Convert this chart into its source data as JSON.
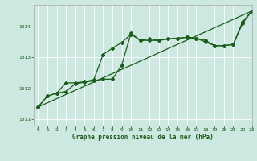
{
  "title": "Graphe pression niveau de la mer (hPa)",
  "xlim": [
    -0.5,
    23
  ],
  "ylim": [
    1010.8,
    1014.7
  ],
  "yticks": [
    1011,
    1012,
    1013,
    1014
  ],
  "xticks": [
    0,
    1,
    2,
    3,
    4,
    5,
    6,
    7,
    8,
    9,
    10,
    11,
    12,
    13,
    14,
    15,
    16,
    17,
    18,
    19,
    20,
    21,
    22,
    23
  ],
  "bg_color": "#cce8e0",
  "line_color": "#1a5c1a",
  "line1_x": [
    0,
    1,
    2,
    3,
    4,
    5,
    6,
    7,
    8,
    9,
    10,
    11,
    12,
    13,
    14,
    15,
    16,
    17,
    18,
    19,
    20,
    21,
    22,
    23
  ],
  "line1_y": [
    1011.4,
    1011.75,
    1011.85,
    1011.9,
    1012.15,
    1012.2,
    1012.25,
    1012.3,
    1012.3,
    1012.75,
    1013.78,
    1013.55,
    1013.6,
    1013.55,
    1013.6,
    1013.62,
    1013.65,
    1013.62,
    1013.55,
    1013.38,
    1013.38,
    1013.42,
    1014.1,
    1014.5
  ],
  "line2_x": [
    0,
    1,
    2,
    3,
    4,
    5,
    6,
    7,
    8,
    9,
    10,
    11,
    12,
    13,
    14,
    15,
    16,
    17,
    18,
    19,
    20,
    21,
    22,
    23
  ],
  "line2_y": [
    1011.4,
    1011.75,
    1011.85,
    1012.18,
    1012.18,
    1012.22,
    1012.28,
    1013.1,
    1013.3,
    1013.48,
    1013.75,
    1013.55,
    1013.55,
    1013.55,
    1013.6,
    1013.62,
    1013.65,
    1013.62,
    1013.5,
    1013.38,
    1013.38,
    1013.42,
    1014.15,
    1014.5
  ],
  "line3_x": [
    0,
    23
  ],
  "line3_y": [
    1011.4,
    1014.5
  ]
}
